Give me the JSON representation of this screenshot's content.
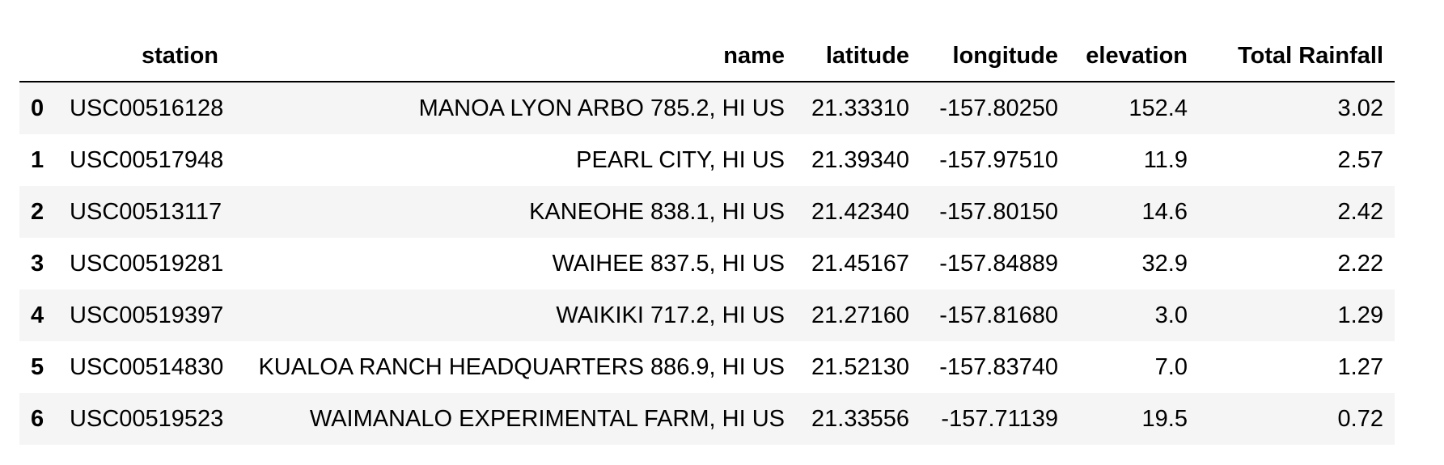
{
  "table": {
    "columns": [
      "station",
      "name",
      "latitude",
      "longitude",
      "elevation",
      "Total Rainfall"
    ],
    "rows": [
      {
        "index": "0",
        "station": "USC00516128",
        "name": "MANOA LYON ARBO 785.2, HI US",
        "latitude": "21.33310",
        "longitude": "-157.80250",
        "elevation": "152.4",
        "total_rainfall": "3.02"
      },
      {
        "index": "1",
        "station": "USC00517948",
        "name": "PEARL CITY, HI US",
        "latitude": "21.39340",
        "longitude": "-157.97510",
        "elevation": "11.9",
        "total_rainfall": "2.57"
      },
      {
        "index": "2",
        "station": "USC00513117",
        "name": "KANEOHE 838.1, HI US",
        "latitude": "21.42340",
        "longitude": "-157.80150",
        "elevation": "14.6",
        "total_rainfall": "2.42"
      },
      {
        "index": "3",
        "station": "USC00519281",
        "name": "WAIHEE 837.5, HI US",
        "latitude": "21.45167",
        "longitude": "-157.84889",
        "elevation": "32.9",
        "total_rainfall": "2.22"
      },
      {
        "index": "4",
        "station": "USC00519397",
        "name": "WAIKIKI 717.2, HI US",
        "latitude": "21.27160",
        "longitude": "-157.81680",
        "elevation": "3.0",
        "total_rainfall": "1.29"
      },
      {
        "index": "5",
        "station": "USC00514830",
        "name": "KUALOA RANCH HEADQUARTERS 886.9, HI US",
        "latitude": "21.52130",
        "longitude": "-157.83740",
        "elevation": "7.0",
        "total_rainfall": "1.27"
      },
      {
        "index": "6",
        "station": "USC00519523",
        "name": "WAIMANALO EXPERIMENTAL FARM, HI US",
        "latitude": "21.33556",
        "longitude": "-157.71139",
        "elevation": "19.5",
        "total_rainfall": "0.72"
      }
    ]
  },
  "colors": {
    "stripe": "#f5f5f5",
    "header_rule": "#000000",
    "background": "#ffffff"
  }
}
